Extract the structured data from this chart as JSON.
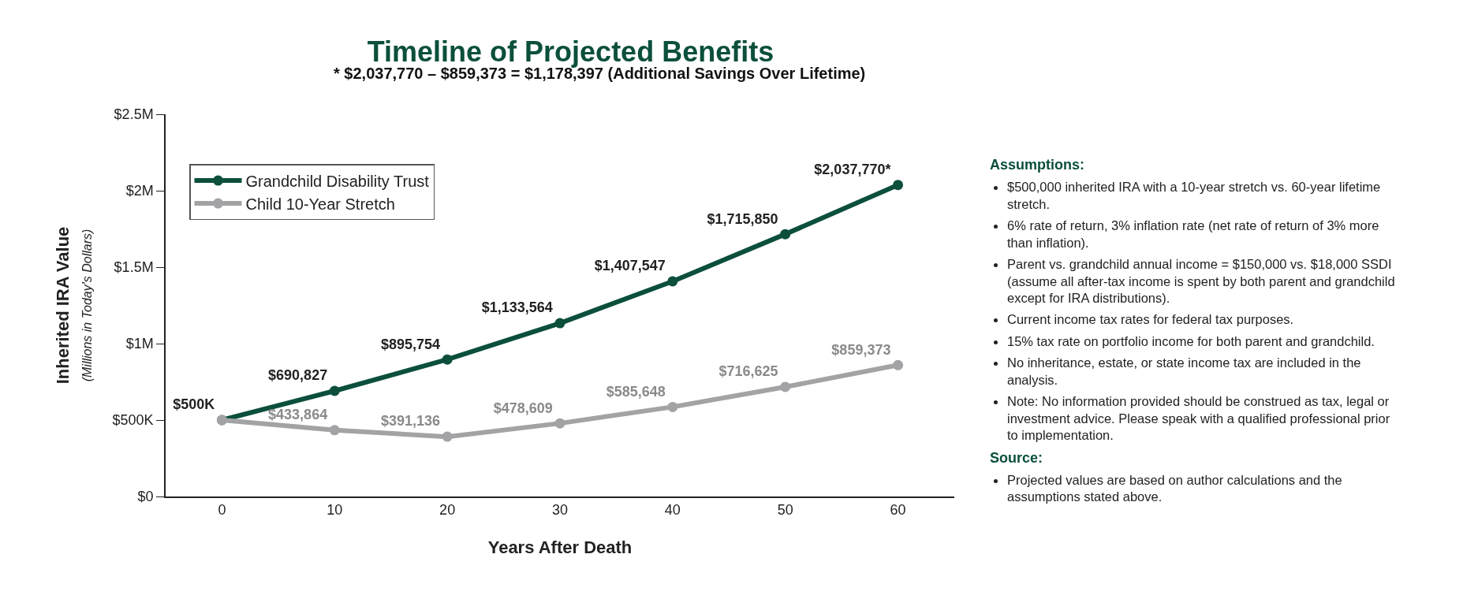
{
  "chart_data": {
    "type": "line",
    "title": "Timeline of Projected Benefits",
    "subtitle": "* $2,037,770 – $859,373 = $1,178,397 (Additional Savings Over Lifetime)",
    "xlabel": "Years After Death",
    "ylabel": "Inherited IRA Value\n(Millions in Today's Dollars)",
    "x": [
      0,
      10,
      20,
      30,
      40,
      50,
      60
    ],
    "series": [
      {
        "name": "Grandchild Disability Trust",
        "color": "#0b4f3c",
        "values": [
          500000,
          690827,
          895754,
          1133564,
          1407547,
          1715850,
          2037770
        ],
        "value_labels": [
          "$500K",
          "$690,827",
          "$895,754",
          "$1,133,564",
          "$1,407,547",
          "$1,715,850",
          "$2,037,770*"
        ]
      },
      {
        "name": "Child 10-Year Stretch",
        "color": "#a3a3a6",
        "values": [
          500000,
          433864,
          391136,
          478609,
          585648,
          716625,
          859373
        ],
        "value_labels": [
          null,
          "$433,864",
          "$391,136",
          "$478,609",
          "$585,648",
          "$716,625",
          "$859,373"
        ]
      }
    ],
    "xlim": [
      -5,
      65
    ],
    "xticks": [
      0,
      10,
      20,
      30,
      40,
      50,
      60
    ],
    "ylim": [
      0,
      2500000
    ],
    "yticks": [
      {
        "value": 0,
        "label": "$0"
      },
      {
        "value": 500000,
        "label": "$500K"
      },
      {
        "value": 1000000,
        "label": "$1M"
      },
      {
        "value": 1500000,
        "label": "$1.5M"
      },
      {
        "value": 2000000,
        "label": "$2M"
      },
      {
        "value": 2500000,
        "label": "$2.5M"
      }
    ],
    "grid": false,
    "legend": "top left",
    "marker": "circle",
    "line_style": "solid",
    "annotations": [
      "Assumptions:",
      "$500,000 inherited IRA with a 10-year stretch vs. 60-year lifetime stretch.",
      "6% rate of return, 3% inflation rate (net rate of return of 3% more than inflation).",
      "Parent vs. grandchild annual income = $150,000 vs. $18,000 SSDI (assume all after-tax income is spent by both parent and grandchild except for IRA distributions).",
      "Current income tax rates for federal tax purposes.",
      "15% tax rate on portfolio income for both parent and grandchild.",
      "No inheritance, estate, or state income tax are included in the analysis.",
      "Note: No information provided should be construed as tax, legal or investment advice. Please speak with a qualified professional prior to implementation.",
      "Source:",
      "Projected values are based on author calculations and the assumptions stated above."
    ]
  }
}
